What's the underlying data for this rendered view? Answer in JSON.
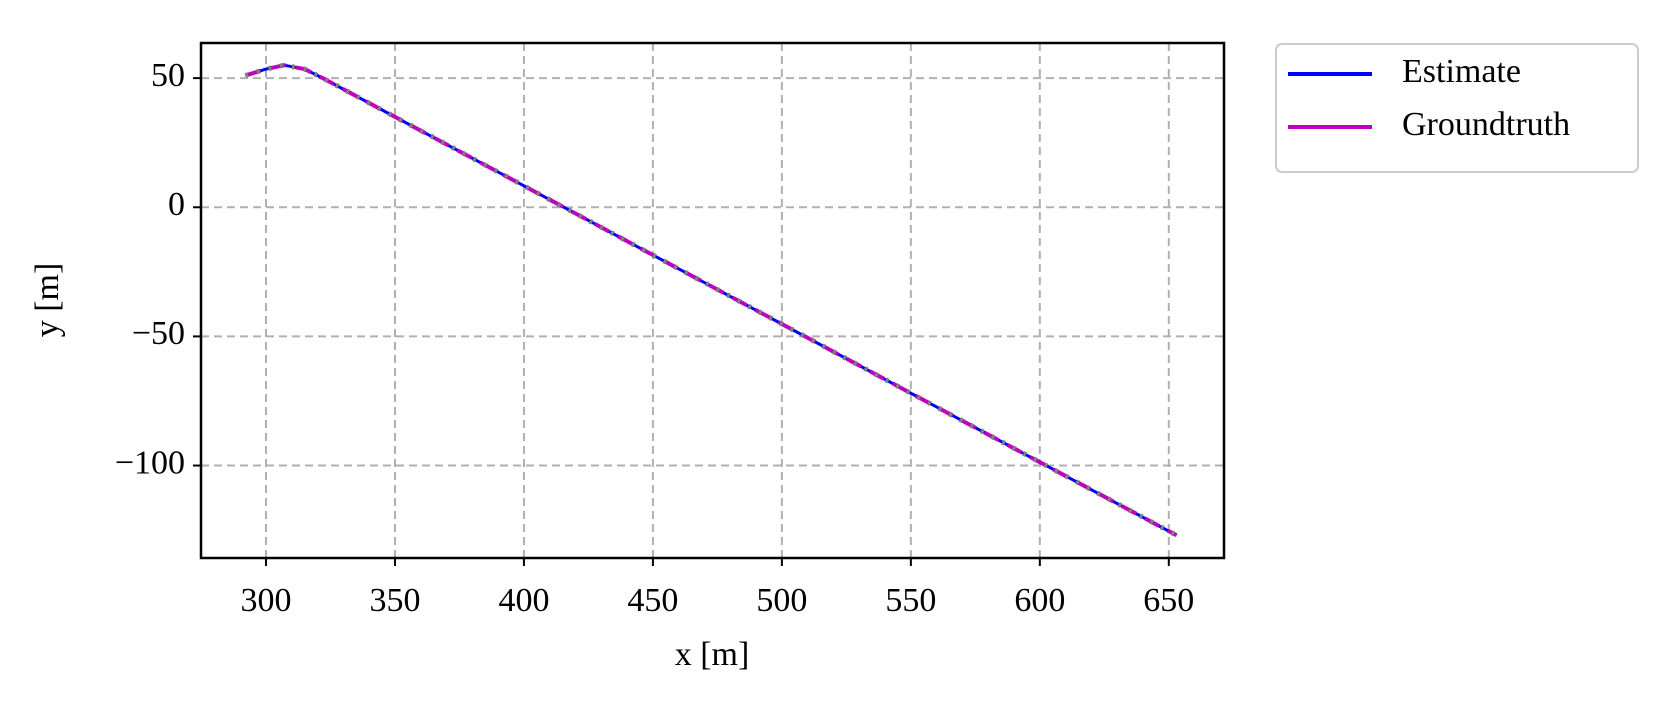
{
  "chart_data": {
    "type": "line",
    "xlabel": "x [m]",
    "ylabel": "y [m]",
    "x": [
      292,
      300,
      307,
      315,
      322,
      350,
      400,
      450,
      500,
      550,
      600,
      653
    ],
    "series": [
      {
        "name": "Estimate",
        "color": "#0000ff",
        "values": [
          51,
          53.5,
          55,
          53.5,
          50,
          35,
          8.3,
          -18.5,
          -45.2,
          -72,
          -98.7,
          -127
        ]
      },
      {
        "name": "Groundtruth",
        "color": "#bf00bf",
        "values": [
          51,
          53.5,
          55,
          53.5,
          50,
          35,
          8.3,
          -18.5,
          -45.2,
          -72,
          -98.7,
          -127
        ]
      },
      {
        "color": "#808080",
        "values": [
          51,
          53.5,
          55,
          53.5,
          50,
          35,
          8.3,
          -18.5,
          -45.2,
          -72,
          -98.7,
          -127
        ]
      }
    ],
    "xlim": [
      274.8,
      671.4
    ],
    "ylim": [
      -135.8,
      63.6
    ],
    "xticks": [
      300,
      350,
      400,
      450,
      500,
      550,
      600,
      650
    ],
    "yticks": [
      50,
      0,
      {
        "value": -50,
        "label": "−50"
      },
      {
        "value": -100,
        "label": "−100"
      }
    ],
    "grid": true,
    "legend": "outside-upper-right"
  }
}
